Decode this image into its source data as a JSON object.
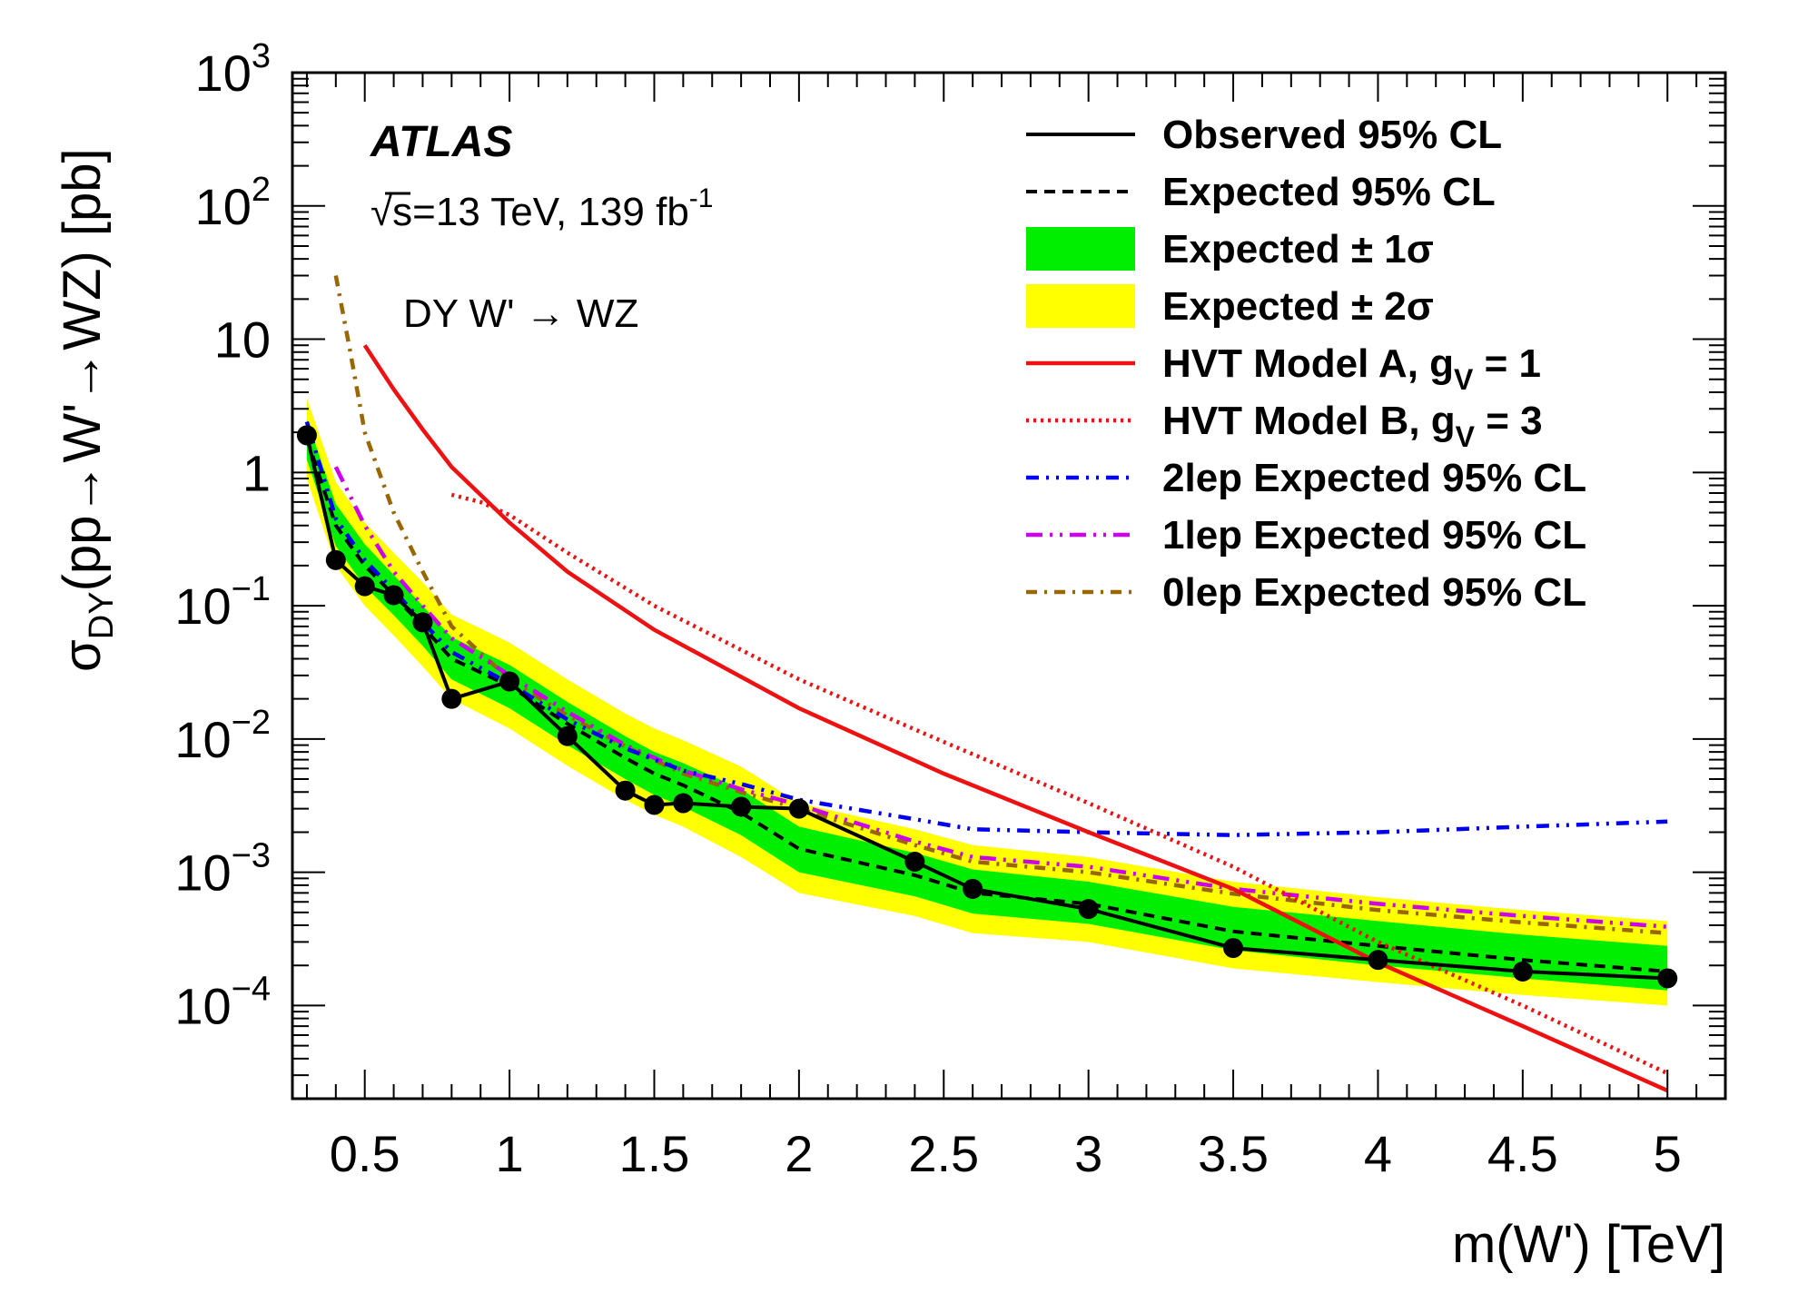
{
  "chart_data": {
    "type": "line",
    "xlabel": "m(W') [TeV]",
    "ylabel": "σ_DY(pp→W'→WZ) [pb]",
    "ylabel_parts": {
      "sigma": "σ",
      "sub": "DY",
      "rest": "(pp→W'→WZ) [pb]"
    },
    "y_scale": "log",
    "xlim": [
      0.25,
      5.2
    ],
    "ylim": [
      2e-05,
      1000
    ],
    "x_ticks": [
      {
        "v": 0.5,
        "label": "0.5"
      },
      {
        "v": 1,
        "label": "1"
      },
      {
        "v": 1.5,
        "label": "1.5"
      },
      {
        "v": 2,
        "label": "2"
      },
      {
        "v": 2.5,
        "label": "2.5"
      },
      {
        "v": 3,
        "label": "3"
      },
      {
        "v": 3.5,
        "label": "3.5"
      },
      {
        "v": 4,
        "label": "4"
      },
      {
        "v": 4.5,
        "label": "4.5"
      },
      {
        "v": 5,
        "label": "5"
      }
    ],
    "y_ticks": [
      {
        "v": 0.0001,
        "base": "10",
        "exp": "−4"
      },
      {
        "v": 0.001,
        "base": "10",
        "exp": "−3"
      },
      {
        "v": 0.01,
        "base": "10",
        "exp": "−2"
      },
      {
        "v": 0.1,
        "base": "10",
        "exp": "−1"
      },
      {
        "v": 1,
        "base": "1",
        "exp": ""
      },
      {
        "v": 10,
        "base": "10",
        "exp": ""
      },
      {
        "v": 100,
        "base": "10",
        "exp": "2"
      },
      {
        "v": 1000,
        "base": "10",
        "exp": "3"
      }
    ],
    "annotations": {
      "experiment": "ATLAS",
      "energy_sqrt": "√",
      "energy_s": "s",
      "energy_text": "=13 TeV, 139 fb",
      "energy_sup": "-1",
      "process": "DY W' → WZ"
    },
    "legend": {
      "placement": "top-right",
      "entries": [
        {
          "key": "observed",
          "label": "Observed 95% CL"
        },
        {
          "key": "expected",
          "label": "Expected 95% CL"
        },
        {
          "key": "band1",
          "label": "Expected ± 1σ"
        },
        {
          "key": "band2",
          "label": "Expected ± 2σ"
        },
        {
          "key": "hvt_a",
          "label": "HVT Model A, g",
          "sub": "V",
          "suffix": " = 1"
        },
        {
          "key": "hvt_b",
          "label": "HVT Model B, g",
          "sub": "V",
          "suffix": " = 3"
        },
        {
          "key": "lep2",
          "label": "2lep Expected 95% CL"
        },
        {
          "key": "lep1",
          "label": "1lep Expected 95% CL"
        },
        {
          "key": "lep0",
          "label": "0lep Expected 95% CL"
        }
      ]
    },
    "colors": {
      "observed": "#000000",
      "expected": "#000000",
      "band1": "#00ee00",
      "band2": "#ffff00",
      "hvt_a": "#ee1111",
      "hvt_b": "#ee1111",
      "lep2": "#0000ee",
      "lep1": "#cc00ee",
      "lep0": "#996600"
    },
    "band_x": [
      0.3,
      0.4,
      0.5,
      0.6,
      0.7,
      0.8,
      1.0,
      1.2,
      1.4,
      1.5,
      1.6,
      1.8,
      2.0,
      2.4,
      2.6,
      3.0,
      3.5,
      4.0,
      4.5,
      5.0
    ],
    "expected": [
      1.8,
      0.4,
      0.2,
      0.12,
      0.07,
      0.04,
      0.025,
      0.013,
      0.0072,
      0.0055,
      0.0045,
      0.0028,
      0.0015,
      0.00095,
      0.0007,
      0.00058,
      0.00036,
      0.00028,
      0.00022,
      0.00018
    ],
    "band1_low": [
      1.25,
      0.28,
      0.14,
      0.085,
      0.05,
      0.028,
      0.017,
      0.009,
      0.005,
      0.0038,
      0.0031,
      0.0019,
      0.001,
      0.00066,
      0.00049,
      0.00041,
      0.00026,
      0.0002,
      0.00016,
      0.00013
    ],
    "band1_high": [
      2.5,
      0.58,
      0.29,
      0.17,
      0.1,
      0.058,
      0.036,
      0.019,
      0.0105,
      0.008,
      0.0066,
      0.0042,
      0.0022,
      0.0014,
      0.00105,
      0.00085,
      0.00055,
      0.00043,
      0.00034,
      0.00028
    ],
    "band2_low": [
      0.9,
      0.2,
      0.1,
      0.06,
      0.035,
      0.02,
      0.012,
      0.0063,
      0.0035,
      0.0027,
      0.0022,
      0.0013,
      0.0007,
      0.00047,
      0.00035,
      0.0003,
      0.00019,
      0.00015,
      0.00012,
      0.0001
    ],
    "band2_high": [
      3.6,
      0.85,
      0.42,
      0.25,
      0.15,
      0.086,
      0.053,
      0.028,
      0.0155,
      0.012,
      0.0098,
      0.0062,
      0.0033,
      0.0021,
      0.0016,
      0.0013,
      0.00085,
      0.00065,
      0.00052,
      0.00043
    ],
    "observed": {
      "x": [
        0.3,
        0.4,
        0.5,
        0.6,
        0.7,
        0.8,
        1.0,
        1.2,
        1.4,
        1.5,
        1.6,
        1.8,
        2.0,
        2.4,
        2.6,
        3.0,
        3.5,
        4.0,
        4.5,
        5.0
      ],
      "y": [
        1.9,
        0.22,
        0.14,
        0.12,
        0.075,
        0.02,
        0.027,
        0.0105,
        0.0041,
        0.0032,
        0.0033,
        0.0031,
        0.003,
        0.0012,
        0.00075,
        0.00053,
        0.00027,
        0.00022,
        0.00018,
        0.00016
      ]
    },
    "hvt_a": {
      "x": [
        0.5,
        0.6,
        0.7,
        0.8,
        1.0,
        1.2,
        1.5,
        2.0,
        2.5,
        3.0,
        3.5,
        4.0,
        4.5,
        5.0
      ],
      "y": [
        9.0,
        4.2,
        2.1,
        1.1,
        0.42,
        0.18,
        0.066,
        0.017,
        0.0055,
        0.002,
        0.00075,
        0.00021,
        7e-05,
        2.3e-05
      ]
    },
    "hvt_b": {
      "x": [
        0.8,
        0.9,
        1.0,
        1.2,
        1.5,
        2.0,
        2.5,
        3.0,
        3.5,
        4.0,
        4.5,
        5.0
      ],
      "y": [
        0.68,
        0.6,
        0.48,
        0.25,
        0.1,
        0.028,
        0.0095,
        0.0033,
        0.0011,
        0.0003,
        0.0001,
        3.1e-05
      ]
    },
    "lep2": {
      "x": [
        0.3,
        0.4,
        0.5,
        0.6,
        0.7,
        0.8,
        1.0,
        1.2,
        1.4,
        1.6,
        1.8,
        2.0,
        2.4,
        2.6,
        3.0,
        3.5,
        4.0,
        4.5,
        5.0
      ],
      "y": [
        2.4,
        0.45,
        0.22,
        0.13,
        0.075,
        0.045,
        0.026,
        0.014,
        0.0085,
        0.0058,
        0.0046,
        0.0035,
        0.0025,
        0.0021,
        0.002,
        0.0019,
        0.002,
        0.0022,
        0.0024
      ]
    },
    "lep1": {
      "x": [
        0.4,
        0.5,
        0.6,
        0.7,
        0.8,
        1.0,
        1.2,
        1.4,
        1.6,
        1.8,
        2.0,
        2.4,
        2.6,
        3.0,
        3.5,
        4.0,
        4.5,
        5.0
      ],
      "y": [
        1.1,
        0.4,
        0.18,
        0.1,
        0.057,
        0.03,
        0.016,
        0.009,
        0.0058,
        0.0042,
        0.0032,
        0.0017,
        0.0013,
        0.0011,
        0.00075,
        0.00058,
        0.00047,
        0.00039
      ]
    },
    "lep0": {
      "x": [
        0.4,
        0.45,
        0.5,
        0.6,
        0.7,
        0.8,
        1.0,
        1.2,
        1.4,
        1.6,
        1.8,
        2.0,
        2.4,
        2.6,
        3.0,
        3.5,
        4.0,
        4.5,
        5.0
      ],
      "y": [
        30,
        8.0,
        2.0,
        0.5,
        0.18,
        0.07,
        0.028,
        0.015,
        0.0088,
        0.0055,
        0.004,
        0.003,
        0.0016,
        0.0012,
        0.001,
        0.00069,
        0.00052,
        0.00042,
        0.00035
      ]
    }
  }
}
